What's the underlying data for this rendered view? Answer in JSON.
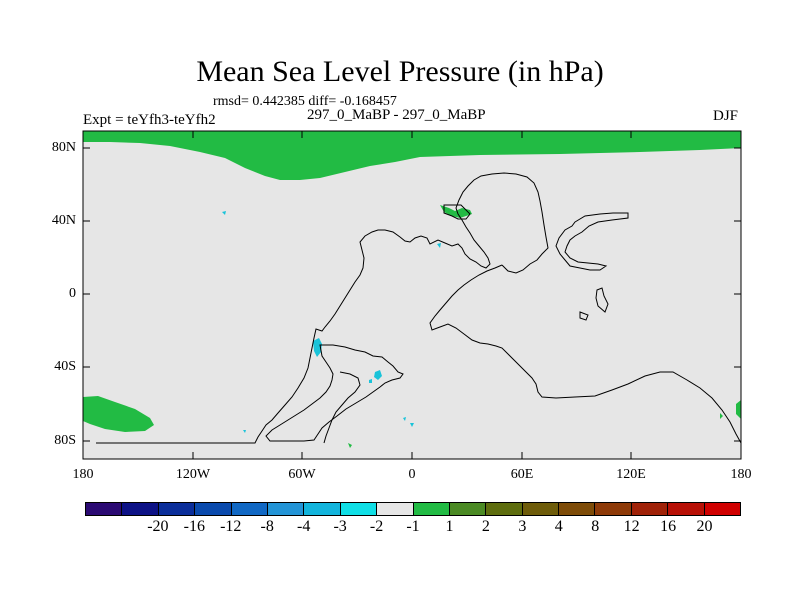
{
  "title": "Mean Sea Level Pressure (in hPa)",
  "stats_text": "rmsd= 0.442385 diff= -0.168457",
  "runs_text": "297_0_MaBP - 297_0_MaBP",
  "expt_text": "Expt = teYfh3-teYfh2",
  "season": "DJF",
  "lat_labels": [
    "80N",
    "40N",
    "0",
    "40S",
    "80S"
  ],
  "lon_labels": [
    "180",
    "120W",
    "60W",
    "0",
    "60E",
    "120E",
    "180"
  ],
  "colorbar": {
    "colors": [
      "#2b0a73",
      "#0d1286",
      "#0b2e9a",
      "#0a4aad",
      "#1168c4",
      "#2394d6",
      "#12b4dc",
      "#10dfe6",
      "#e6e6e6",
      "#22bb44",
      "#4b8a24",
      "#5e6d0e",
      "#6e5c0a",
      "#7e4c08",
      "#8e3a08",
      "#a02208",
      "#b81006",
      "#d00000"
    ],
    "labels": [
      "-20",
      "-16",
      "-12",
      "-8",
      "-4",
      "-3",
      "-2",
      "-1",
      "1",
      "2",
      "3",
      "4",
      "8",
      "12",
      "16",
      "20"
    ]
  },
  "colors": {
    "background": "#e6e6e6",
    "positive": "#22bb44",
    "negative": "#19c3d9"
  }
}
